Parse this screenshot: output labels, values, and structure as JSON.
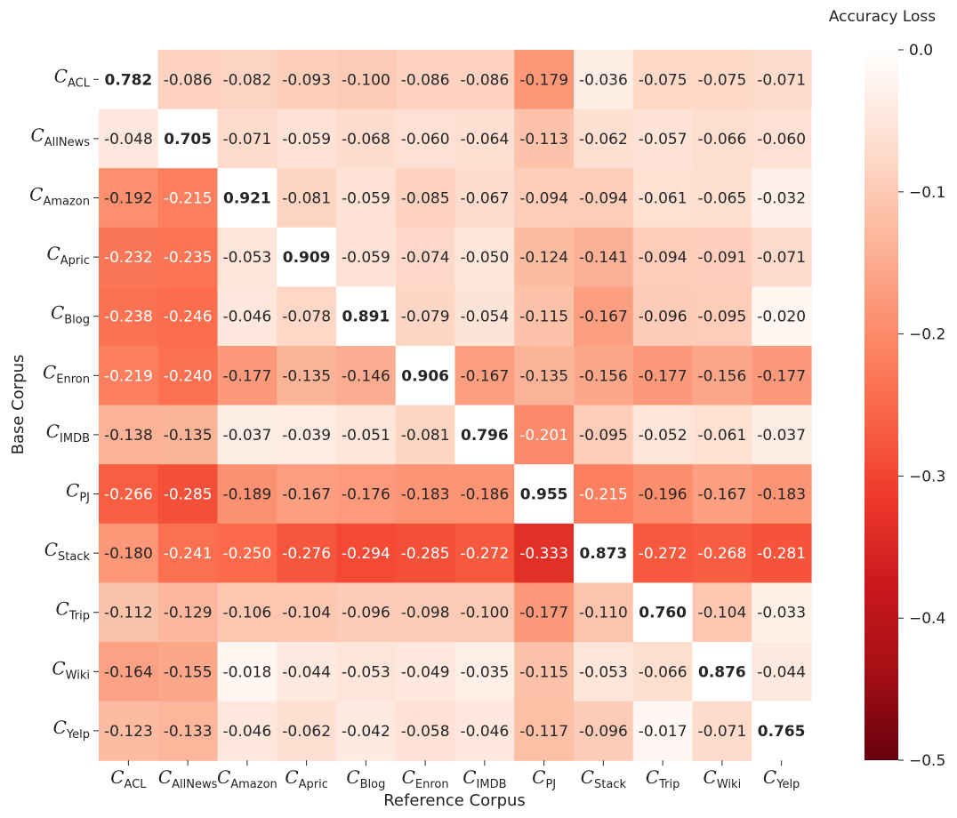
{
  "chart_data": {
    "type": "heatmap",
    "title": "",
    "xlabel": "Reference Corpus",
    "ylabel": "Base Corpus",
    "label_symbol": "C",
    "categories": [
      "ACL",
      "AllNews",
      "Amazon",
      "Apric",
      "Blog",
      "Enron",
      "IMDB",
      "PJ",
      "Stack",
      "Trip",
      "Wiki",
      "Yelp"
    ],
    "values": [
      [
        "0.782",
        "-0.086",
        "-0.082",
        "-0.093",
        "-0.100",
        "-0.086",
        "-0.086",
        "-0.179",
        "-0.036",
        "-0.075",
        "-0.075",
        "-0.071"
      ],
      [
        "-0.048",
        "0.705",
        "-0.071",
        "-0.059",
        "-0.068",
        "-0.060",
        "-0.064",
        "-0.113",
        "-0.062",
        "-0.057",
        "-0.066",
        "-0.060"
      ],
      [
        "-0.192",
        "-0.215",
        "0.921",
        "-0.081",
        "-0.059",
        "-0.085",
        "-0.067",
        "-0.094",
        "-0.094",
        "-0.061",
        "-0.065",
        "-0.032"
      ],
      [
        "-0.232",
        "-0.235",
        "-0.053",
        "0.909",
        "-0.059",
        "-0.074",
        "-0.050",
        "-0.124",
        "-0.141",
        "-0.094",
        "-0.091",
        "-0.071"
      ],
      [
        "-0.238",
        "-0.246",
        "-0.046",
        "-0.078",
        "0.891",
        "-0.079",
        "-0.054",
        "-0.115",
        "-0.167",
        "-0.096",
        "-0.095",
        "-0.020"
      ],
      [
        "-0.219",
        "-0.240",
        "-0.177",
        "-0.135",
        "-0.146",
        "0.906",
        "-0.167",
        "-0.135",
        "-0.156",
        "-0.177",
        "-0.156",
        "-0.177"
      ],
      [
        "-0.138",
        "-0.135",
        "-0.037",
        "-0.039",
        "-0.051",
        "-0.081",
        "0.796",
        "-0.201",
        "-0.095",
        "-0.052",
        "-0.061",
        "-0.037"
      ],
      [
        "-0.266",
        "-0.285",
        "-0.189",
        "-0.167",
        "-0.176",
        "-0.183",
        "-0.186",
        "0.955",
        "-0.215",
        "-0.196",
        "-0.167",
        "-0.183"
      ],
      [
        "-0.180",
        "-0.241",
        "-0.250",
        "-0.276",
        "-0.294",
        "-0.285",
        "-0.272",
        "-0.333",
        "0.873",
        "-0.272",
        "-0.268",
        "-0.281"
      ],
      [
        "-0.112",
        "-0.129",
        "-0.106",
        "-0.104",
        "-0.096",
        "-0.098",
        "-0.100",
        "-0.177",
        "-0.110",
        "0.760",
        "-0.104",
        "-0.033"
      ],
      [
        "-0.164",
        "-0.155",
        "-0.018",
        "-0.044",
        "-0.053",
        "-0.049",
        "-0.035",
        "-0.115",
        "-0.053",
        "-0.066",
        "0.876",
        "-0.044"
      ],
      [
        "-0.123",
        "-0.133",
        "-0.046",
        "-0.062",
        "-0.042",
        "-0.058",
        "-0.046",
        "-0.117",
        "-0.096",
        "-0.017",
        "-0.071",
        "0.765"
      ]
    ],
    "colorbar": {
      "label": "Accuracy Loss",
      "range": [
        -0.5,
        0.0
      ],
      "ticks": [
        "0.0",
        "−0.1",
        "−0.2",
        "−0.3",
        "−0.4",
        "−0.5"
      ],
      "colormap": "Reds_r"
    }
  }
}
